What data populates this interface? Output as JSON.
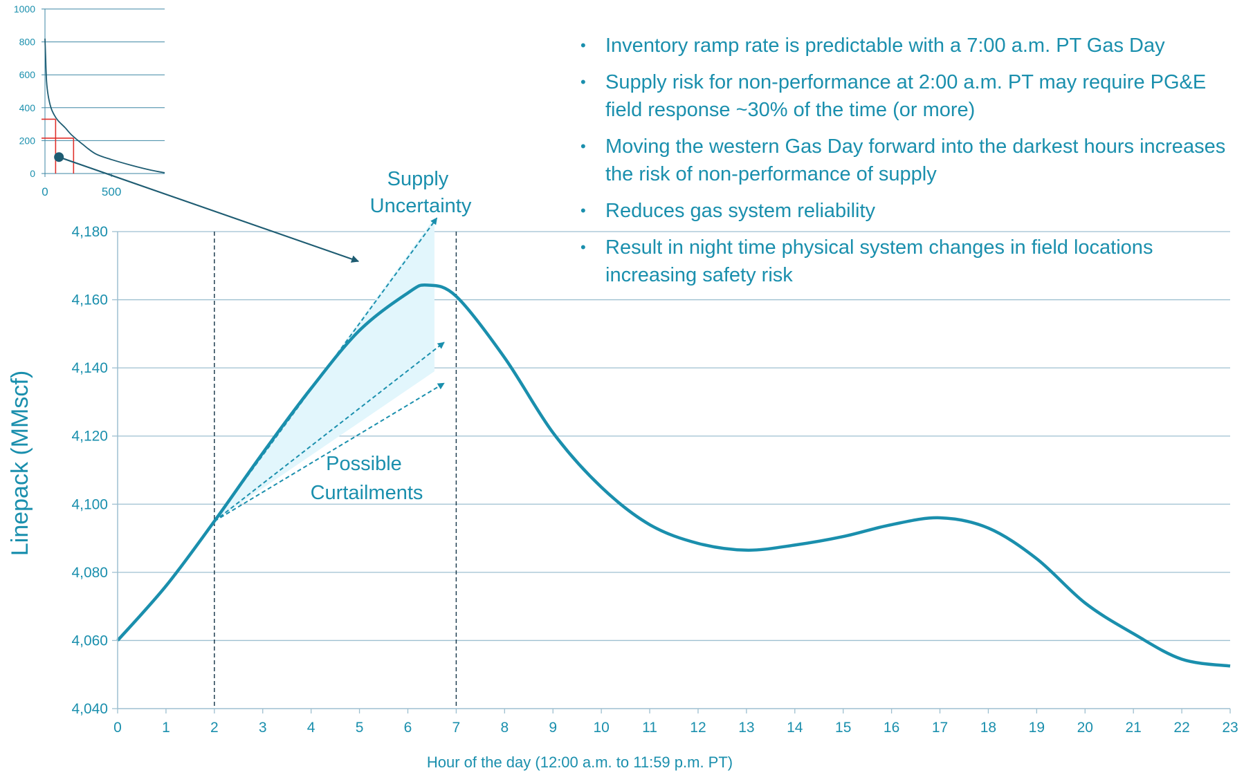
{
  "chart_data": [
    {
      "type": "line",
      "title": "",
      "xlabel": "Hour of the day (12:00 a.m. to 11:59 p.m. PT)",
      "ylabel": "Linepack (MMscf)",
      "xlim": [
        0,
        23
      ],
      "ylim": [
        4040,
        4180
      ],
      "x_ticks": [
        0,
        1,
        2,
        3,
        4,
        5,
        6,
        7,
        8,
        9,
        10,
        11,
        12,
        13,
        14,
        15,
        16,
        17,
        18,
        19,
        20,
        21,
        22,
        23
      ],
      "y_ticks": [
        4040,
        4060,
        4080,
        4100,
        4120,
        4140,
        4160,
        4180
      ],
      "y_tick_labels": [
        "4,040",
        "4,060",
        "4,080",
        "4,100",
        "4,120",
        "4,140",
        "4,160",
        "4,180"
      ],
      "grid": "horizontal",
      "series": [
        {
          "color": "#1a8fad",
          "x": [
            0,
            1,
            2,
            3,
            4,
            5,
            6,
            6.4,
            7,
            8,
            9,
            10,
            11,
            12,
            13,
            14,
            15,
            16,
            17,
            18,
            19,
            20,
            21,
            22,
            23
          ],
          "y": [
            4060,
            4076,
            4095,
            4115,
            4134,
            4151,
            4162,
            4164.3,
            4161,
            4143,
            4121,
            4105,
            4094,
            4088.5,
            4086.5,
            4088,
            4090.5,
            4094,
            4096,
            4093,
            4084,
            4071,
            4062,
            4054.5,
            4052.5
          ]
        }
      ],
      "reference_lines": {
        "x": [
          2,
          7
        ]
      },
      "projections": [
        {
          "from": [
            2,
            4095
          ],
          "to": [
            6.6,
            4184
          ]
        },
        {
          "from": [
            2,
            4095
          ],
          "to": [
            6.75,
            4147.5
          ]
        },
        {
          "from": [
            2,
            4095
          ],
          "to": [
            6.75,
            4135.5
          ]
        }
      ],
      "shaded_region": [
        [
          2,
          4095
        ],
        [
          6.55,
          4184
        ],
        [
          6.55,
          4139
        ]
      ],
      "annotations": [
        {
          "id": "supply",
          "lines": [
            "Supply",
            "Uncertainty"
          ]
        },
        {
          "id": "curtail",
          "lines": [
            "Possible",
            "Curtailments"
          ]
        }
      ],
      "colors": {
        "main": "#1a8fad",
        "axis_text": "#1a8fad",
        "grid": "#9dbfd0",
        "shade": "#e2f6fc",
        "dark_arrow": "#1e5c72",
        "inset_red": "#e0302b"
      }
    },
    {
      "type": "line",
      "title": "",
      "xlim": [
        0,
        900
      ],
      "ylim": [
        0,
        1000
      ],
      "x_ticks": [
        0,
        500
      ],
      "y_ticks": [
        0,
        200,
        400,
        600,
        800,
        1000
      ],
      "grid": "horizontal",
      "series": [
        {
          "color": "#1e5c72",
          "x": [
            0,
            5,
            12,
            25,
            45,
            70,
            100,
            150,
            200,
            280,
            380,
            500,
            650,
            800,
            900
          ],
          "y": [
            820,
            700,
            560,
            470,
            400,
            355,
            320,
            280,
            235,
            180,
            120,
            85,
            50,
            20,
            5
          ]
        }
      ],
      "marker": {
        "x": 105,
        "y": 100
      },
      "red_guides": [
        {
          "x": 80,
          "y": 330
        },
        {
          "x": 215,
          "y": 215
        }
      ]
    }
  ],
  "bullets": [
    "Inventory ramp rate is predictable with a 7:00 a.m. PT Gas Day",
    "Supply risk for non-performance at 2:00 a.m. PT may require PG&E field response ~30% of the time (or more)",
    "Moving the  western Gas Day forward into the darkest hours increases the risk of non-performance of supply",
    "Reduces gas system reliability",
    "Result in night time physical system changes in field locations increasing safety risk"
  ]
}
